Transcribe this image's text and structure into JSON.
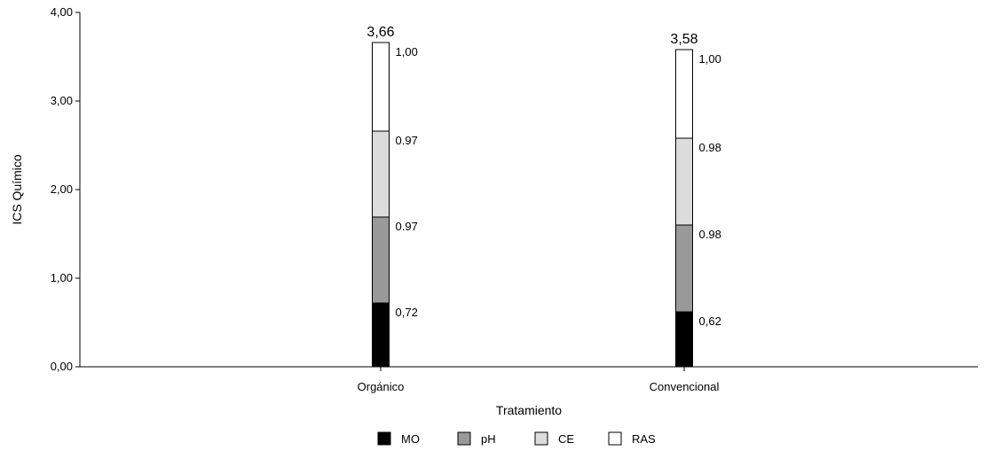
{
  "chart_data": {
    "type": "bar",
    "stacked": true,
    "title": "",
    "xlabel": "Tratamiento",
    "ylabel": "ICS Químico",
    "ylim": [
      0,
      4
    ],
    "yticks": [
      "0,00",
      "1,00",
      "2,00",
      "3,00",
      "4,00"
    ],
    "categories": [
      "Orgánico",
      "Convencional"
    ],
    "series": [
      {
        "name": "MO",
        "values": [
          0.72,
          0.62
        ],
        "labels": [
          "0,72",
          "0,62"
        ],
        "color": "#000000"
      },
      {
        "name": "pH",
        "values": [
          0.97,
          0.98
        ],
        "labels": [
          "0.97",
          "0.98"
        ],
        "color": "#999999"
      },
      {
        "name": "CE",
        "values": [
          0.97,
          0.98
        ],
        "labels": [
          "0.97",
          "0.98"
        ],
        "color": "#dcdcdc"
      },
      {
        "name": "RAS",
        "values": [
          1.0,
          1.0
        ],
        "labels": [
          "1,00",
          "1,00"
        ],
        "color": "#ffffff"
      }
    ],
    "totals": [
      "3,66",
      "3,58"
    ],
    "legend_position": "bottom-center",
    "grid": false
  }
}
